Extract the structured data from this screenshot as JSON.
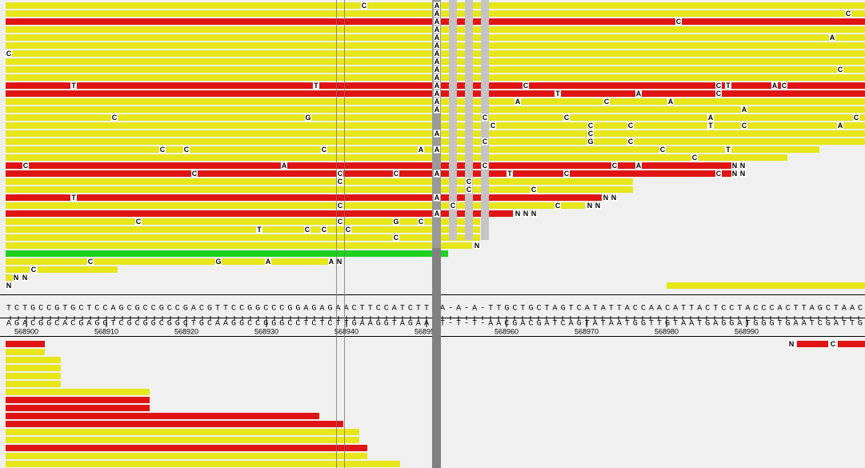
{
  "top_reads": [
    [
      "C",
      "A"
    ],
    [
      "A",
      "C"
    ],
    [
      "A",
      "C"
    ],
    [
      "A"
    ],
    [
      "A",
      "A"
    ],
    [
      "A"
    ],
    [
      "C",
      "A"
    ],
    [
      "A"
    ],
    [
      "A",
      "C"
    ],
    [
      "A"
    ],
    [
      "T",
      "T",
      "A",
      "C",
      "C",
      "T",
      "A",
      "C"
    ],
    [
      "A",
      "T",
      "A",
      "C"
    ],
    [
      "A",
      "A",
      "C",
      "A"
    ],
    [
      "A",
      "A"
    ],
    [
      "C",
      "G",
      "C",
      "C",
      "A",
      "C"
    ],
    [
      "C",
      "C",
      "C",
      "T",
      "C",
      "A"
    ],
    [
      "A",
      "C"
    ],
    [
      "C",
      "G",
      "C"
    ],
    [
      "C",
      "C",
      "C",
      "A",
      "A",
      "C",
      "T"
    ],
    [
      "C"
    ],
    [
      "C",
      "A",
      "C",
      "C",
      "A",
      "N",
      "N"
    ],
    [
      "C",
      "C",
      "C",
      "A",
      "T",
      "C",
      "C",
      "N",
      "N"
    ],
    [
      "C",
      "C"
    ],
    [
      "C",
      "C"
    ],
    [
      "T",
      "A",
      "N",
      "N"
    ],
    [
      "C",
      "C",
      "C",
      "N",
      "N"
    ],
    [
      "A",
      "N",
      "N",
      "N"
    ],
    [
      "C",
      "C",
      "G",
      "C"
    ],
    [
      "T",
      "C",
      "C",
      "C"
    ],
    [
      "C"
    ],
    [
      "N"
    ],
    [],
    [
      "C",
      "G",
      "A",
      "A",
      "N"
    ],
    [
      "C"
    ],
    [
      "N",
      "N"
    ],
    [
      "N"
    ]
  ],
  "reference": {
    "forward": "TCTGCCGTGCTCCAGCGCCGCCGACGTTCCGGCCCGGAGAGAACTTCCATCTT-A-A-A-TTGCTGCTAGTCATATTACCAACATTACTCCTACCCACTTAGCTAAC",
    "reverse": "AGACGGCACGAGGTCGCGGCGGCTGCAAGGCCGGGCCTCTCTTGAAGGTAGAA-T-T-T-AACGACGATCAGTATAATGGTTGTAATGAGGATGGGTGAATCGATTG"
  },
  "positions": [
    568900,
    568910,
    568920,
    568930,
    568940,
    568950,
    568960,
    568970,
    568980,
    568990
  ],
  "bottom_reads": [
    [
      "N",
      "C"
    ],
    [],
    [],
    [],
    [],
    [],
    [],
    [],
    [],
    [],
    [],
    [],
    [],
    [],
    [],
    []
  ]
}
